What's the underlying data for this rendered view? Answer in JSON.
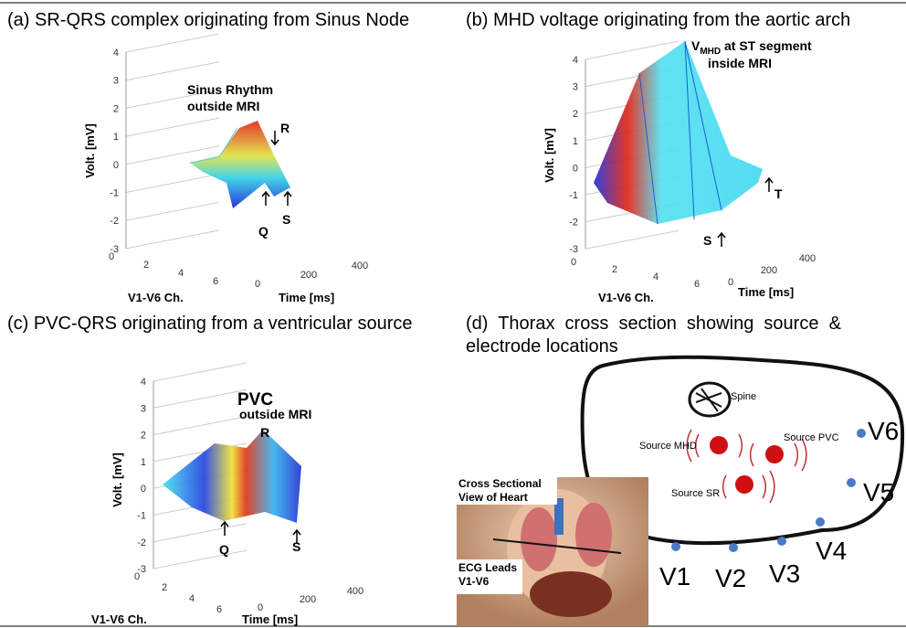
{
  "panels": [
    {
      "caption": "(a) SR-QRS complex originating from Sinus Node",
      "y_label": "Volt. [mV]",
      "x_label": "V1-V6 Ch.",
      "t_label": "Time [ms]",
      "yticks": [
        4,
        3,
        2,
        1,
        0,
        -1,
        -2,
        -3
      ],
      "xticks": [
        0,
        2,
        4,
        6
      ],
      "tticks": [
        0,
        200,
        400
      ],
      "annotations": [
        "Sinus Rhythm",
        "outside MRI",
        "R",
        "Q",
        "S"
      ]
    },
    {
      "caption": "(b) MHD voltage originating from the aortic arch",
      "y_label": "Volt. [mV]",
      "x_label": "V1-V6 Ch.",
      "t_label": "Time [ms]",
      "yticks": [
        4,
        3,
        2,
        1,
        0,
        -1,
        -2,
        -3
      ],
      "xticks": [
        0,
        2,
        4,
        6
      ],
      "tticks": [
        0,
        200,
        400
      ],
      "annotations": [
        "V",
        "MHD",
        " at ST segment",
        "inside MRI",
        "T",
        "S"
      ]
    },
    {
      "caption": "(c) PVC-QRS originating from a ventricular source",
      "y_label": "Volt. [mV]",
      "x_label": "V1-V6 Ch.",
      "t_label": "Time [ms]",
      "yticks": [
        4,
        3,
        2,
        1,
        0,
        -1,
        -2,
        -3
      ],
      "xticks": [
        0,
        2,
        4,
        6
      ],
      "tticks": [
        0,
        200,
        400
      ],
      "annotations": [
        "PVC",
        "outside MRI",
        "R",
        "Q",
        "S"
      ]
    },
    {
      "caption_lines": [
        "(d)  Thorax  cross  section  showing  source  &",
        "electrode locations"
      ],
      "labels": [
        "Spine",
        "Source MHD",
        "Source PVC",
        "Source SR",
        "Cross Sectional",
        "View of Heart",
        "ECG Leads",
        "V1-V6"
      ],
      "electrodes": [
        "V1",
        "V2",
        "V3",
        "V4",
        "V5",
        "V6"
      ]
    }
  ]
}
